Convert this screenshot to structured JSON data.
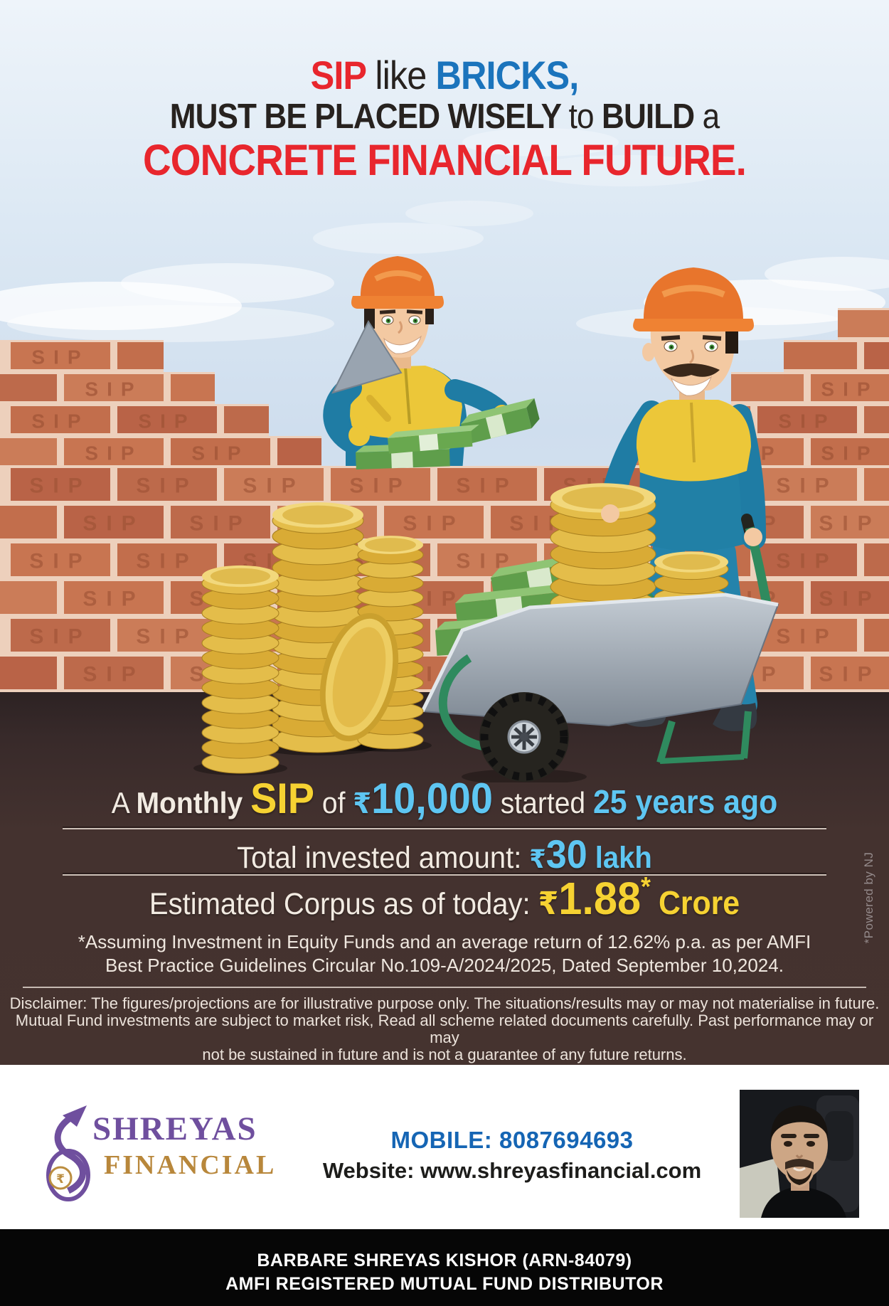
{
  "headline": {
    "sip": "SIP",
    "like": "like",
    "bricks": "BRICKS,",
    "line2_a": "MUST BE PLACED WISELY",
    "line2_b": "to",
    "line2_c": "BUILD",
    "line2_d": "a",
    "line3": "CONCRETE FINANCIAL FUTURE."
  },
  "stats": {
    "line1": {
      "a": "A",
      "monthly": "Monthly",
      "sip": "SIP",
      "of": "of",
      "rupee": "₹",
      "amount": "10,000",
      "started": "started",
      "since": "25 years ago"
    },
    "line2": {
      "label": "Total invested amount:",
      "rupee": "₹",
      "amount": "30",
      "unit": "lakh"
    },
    "line3": {
      "label": "Estimated Corpus as of today:",
      "rupee": "₹",
      "amount": "1.88",
      "star": "*",
      "unit": "Crore"
    }
  },
  "assumption": {
    "line1": "*Assuming Investment in Equity Funds and an average return of 12.62% p.a. as per AMFI",
    "line2": "Best Practice  Guidelines Circular No.109-A/2024/2025, Dated September 10,2024."
  },
  "disclaimer": {
    "line1": "Disclaimer: The figures/projections are for illustrative purpose only. The situations/results may or may not materialise in future.",
    "line2": "Mutual Fund investments are subject to market risk, Read all scheme related documents carefully. Past performance may or may",
    "line3": "not be sustained in future and is not a guarantee of any future returns."
  },
  "powered_by": "*Powered by NJ",
  "illustration": {
    "brick_label": "SIP"
  },
  "footer": {
    "brand_name": "SHREYAS",
    "brand_sub": "FINANCIAL",
    "logo_rupee": "₹",
    "mobile_label": "MOBILE:",
    "mobile_number": "8087694693",
    "website_label": "Website:",
    "website_url": "www.shreyasfinancial.com"
  },
  "bottom_bar": {
    "line1": "BARBARE SHREYAS KISHOR (ARN-84079)",
    "line2": "AMFI REGISTERED MUTUAL FUND DISTRIBUTOR"
  },
  "colors": {
    "headline_red": "#e8262d",
    "headline_blue": "#1b74bc",
    "accent_yellow": "#f6d232",
    "accent_light_blue": "#5ec6f2",
    "brand_purple": "#6f4f9e",
    "brand_gold": "#bb8d3f",
    "footer_blue": "#1565b4",
    "dark_panel": "#44322f",
    "brick": "#c26e4c"
  }
}
